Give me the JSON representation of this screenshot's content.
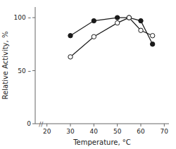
{
  "chart_data": {
    "type": "line",
    "x": [
      30,
      40,
      50,
      55,
      60,
      65
    ],
    "series": [
      {
        "values": [
          83,
          97,
          100,
          100,
          97,
          75
        ],
        "color": "#1a1a1a",
        "marker": "filled-circle"
      },
      {
        "values": [
          63,
          82,
          95,
          100,
          88,
          83
        ],
        "color": "#1a1a1a",
        "marker": "open-circle"
      }
    ],
    "xlabel": "Temperature,  °C",
    "ylabel": "Relative Activity, %",
    "xlim": [
      15,
      72
    ],
    "ylim": [
      0,
      110
    ],
    "xticks": [
      20,
      30,
      40,
      50,
      60,
      70
    ],
    "yticks": [
      0,
      {
        "value": 50,
        "label": "50 –"
      },
      {
        "value": 100,
        "label": "100 –"
      }
    ],
    "annotations": [
      {
        "text": "//",
        "x": 17.5
      }
    ],
    "grid": false
  }
}
